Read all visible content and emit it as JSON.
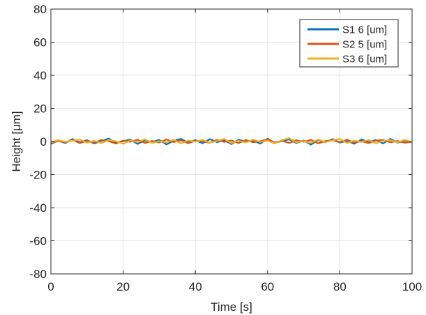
{
  "chart_data": {
    "type": "line",
    "title": "",
    "xlabel": "Time [s]",
    "ylabel": "Height [μm]",
    "xlim": [
      0,
      100
    ],
    "ylim": [
      -80,
      80
    ],
    "xticks": [
      0,
      20,
      40,
      60,
      80,
      100
    ],
    "yticks": [
      -80,
      -60,
      -40,
      -20,
      0,
      20,
      40,
      60,
      80
    ],
    "grid": true,
    "legend_position": "top-right",
    "series": [
      {
        "name": "S1 6 [um]",
        "color": "#0072BD",
        "x": [
          0,
          2,
          4,
          6,
          8,
          10,
          12,
          14,
          16,
          18,
          20,
          22,
          24,
          26,
          28,
          30,
          32,
          34,
          36,
          38,
          40,
          42,
          44,
          46,
          48,
          50,
          52,
          54,
          56,
          58,
          60,
          62,
          64,
          66,
          68,
          70,
          72,
          74,
          76,
          78,
          80,
          82,
          84,
          86,
          88,
          90,
          92,
          94,
          96,
          98,
          100
        ],
        "y": [
          -1.5,
          0.5,
          -1,
          1.5,
          -0.5,
          0.8,
          -1.2,
          0.3,
          1.8,
          -0.8,
          0.2,
          1.2,
          -1.5,
          0.6,
          -0.3,
          1.0,
          -1.8,
          0.4,
          1.6,
          -0.6,
          0.9,
          -1.1,
          1.4,
          -0.4,
          0.7,
          -1.6,
          1.1,
          -0.2,
          0.5,
          -1.3,
          1.7,
          -0.9,
          0.3,
          1.3,
          -1.0,
          0.6,
          -1.9,
          0.8,
          -0.5,
          1.5,
          -0.7,
          0.4,
          -1.4,
          1.2,
          -0.3,
          0.9,
          -1.2,
          1.6,
          -0.8,
          0.5,
          -0.5
        ]
      },
      {
        "name": "S2 5 [um]",
        "color": "#D95319",
        "x": [
          0,
          2,
          4,
          6,
          8,
          10,
          12,
          14,
          16,
          18,
          20,
          22,
          24,
          26,
          28,
          30,
          32,
          34,
          36,
          38,
          40,
          42,
          44,
          46,
          48,
          50,
          52,
          54,
          56,
          58,
          60,
          62,
          64,
          66,
          68,
          70,
          72,
          74,
          76,
          78,
          80,
          82,
          84,
          86,
          88,
          90,
          92,
          94,
          96,
          98,
          100
        ],
        "y": [
          -0.8,
          0.3,
          -0.5,
          1.0,
          -1.0,
          0.4,
          -0.7,
          0.9,
          0.2,
          -1.3,
          0.6,
          -0.2,
          1.1,
          -0.9,
          0.3,
          -0.6,
          1.2,
          -0.4,
          0.8,
          -1.1,
          0.5,
          0.1,
          -0.8,
          1.0,
          -0.3,
          0.6,
          -1.0,
          0.9,
          -0.5,
          0.2,
          1.3,
          -0.6,
          0.4,
          -0.9,
          0.7,
          -0.2,
          1.0,
          -1.2,
          0.3,
          0.8,
          -0.4,
          1.1,
          -0.7,
          0.2,
          -1.0,
          0.6,
          0.9,
          -0.5,
          0.3,
          -0.8,
          -0.2
        ]
      },
      {
        "name": "S3 6 [um]",
        "color": "#EDB120",
        "x": [
          0,
          2,
          4,
          6,
          8,
          10,
          12,
          14,
          16,
          18,
          20,
          22,
          24,
          26,
          28,
          30,
          32,
          34,
          36,
          38,
          40,
          42,
          44,
          46,
          48,
          50,
          52,
          54,
          56,
          58,
          60,
          62,
          64,
          66,
          68,
          70,
          72,
          74,
          76,
          78,
          80,
          82,
          84,
          86,
          88,
          90,
          92,
          94,
          96,
          98,
          100
        ],
        "y": [
          -0.5,
          0.8,
          -0.2,
          0.5,
          1.2,
          -0.8,
          0.4,
          -1.0,
          0.9,
          0.1,
          -1.4,
          0.7,
          -0.4,
          1.3,
          -0.9,
          0.2,
          -0.5,
          1.0,
          -1.2,
          0.6,
          -0.1,
          0.9,
          -0.7,
          0.3,
          1.5,
          -1.0,
          0.4,
          -0.6,
          1.1,
          -0.3,
          0.5,
          -1.2,
          0.8,
          2.0,
          -0.6,
          0.3,
          -0.9,
          1.2,
          -0.4,
          0.7,
          1.6,
          -1.0,
          0.5,
          -0.3,
          0.9,
          -1.1,
          0.4,
          0.8,
          -0.6,
          1.0,
          -0.4
        ]
      }
    ]
  }
}
